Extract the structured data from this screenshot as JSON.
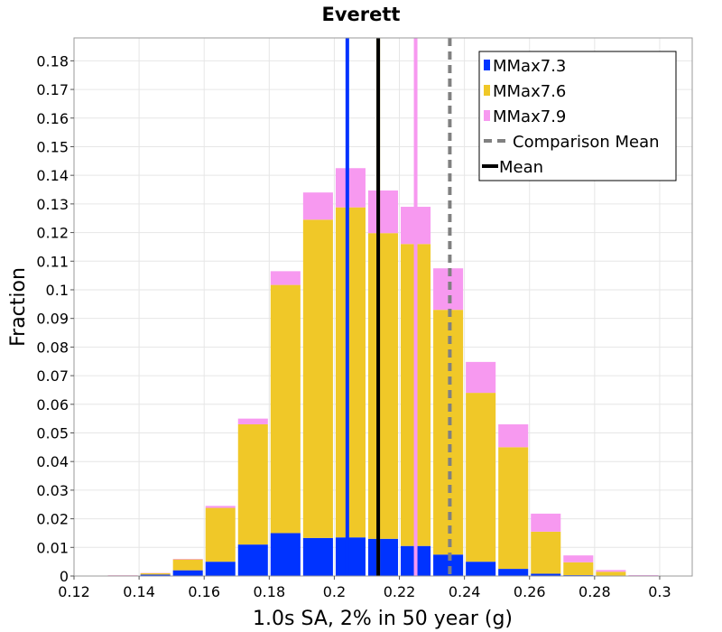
{
  "chart_data": {
    "type": "bar",
    "stacked": true,
    "title": "Everett",
    "xlabel": "1.0s SA, 2% in 50 year (g)",
    "ylabel": "Fraction",
    "xlim": [
      0.12,
      0.31
    ],
    "ylim": [
      0,
      0.188
    ],
    "bin_width": 0.01,
    "x_ticks": [
      0.12,
      0.14,
      0.16,
      0.18,
      0.2,
      0.22,
      0.24,
      0.26,
      0.28,
      0.3
    ],
    "x_tick_labels": [
      "0.12",
      "0.14",
      "0.16",
      "0.18",
      "0.2",
      "0.22",
      "0.24",
      "0.26",
      "0.28",
      "0.3"
    ],
    "y_ticks": [
      0,
      0.01,
      0.02,
      0.03,
      0.04,
      0.05,
      0.06,
      0.07,
      0.08,
      0.09,
      0.1,
      0.11,
      0.12,
      0.13,
      0.14,
      0.15,
      0.16,
      0.17,
      0.18
    ],
    "y_tick_labels": [
      "0",
      "0.01",
      "0.02",
      "0.03",
      "0.04",
      "0.05",
      "0.06",
      "0.07",
      "0.08",
      "0.09",
      "0.1",
      "0.11",
      "0.12",
      "0.13",
      "0.14",
      "0.15",
      "0.16",
      "0.17",
      "0.18"
    ],
    "grid": true,
    "legend_position": "top-right",
    "bin_centers": [
      0.135,
      0.145,
      0.155,
      0.165,
      0.175,
      0.185,
      0.195,
      0.205,
      0.215,
      0.225,
      0.235,
      0.245,
      0.255,
      0.265,
      0.275,
      0.285,
      0.295,
      0.305
    ],
    "series": [
      {
        "name": "MMax7.3",
        "color": "#0033ff",
        "values": [
          0.0,
          0.0005,
          0.002,
          0.005,
          0.011,
          0.015,
          0.0133,
          0.0135,
          0.013,
          0.0105,
          0.0075,
          0.005,
          0.0025,
          0.0008,
          0.0003,
          0.0001,
          0.0,
          0.0
        ]
      },
      {
        "name": "MMax7.6",
        "color": "#f0c828",
        "values": [
          0.0002,
          0.0005,
          0.0038,
          0.0188,
          0.042,
          0.0867,
          0.1112,
          0.1153,
          0.1068,
          0.1055,
          0.0855,
          0.059,
          0.0425,
          0.0147,
          0.0045,
          0.0014,
          0.0001,
          0.0
        ]
      },
      {
        "name": "MMax7.9",
        "color": "#f799f0",
        "values": [
          0.0001,
          0.0001,
          0.0002,
          0.0007,
          0.002,
          0.0048,
          0.0095,
          0.0137,
          0.0149,
          0.013,
          0.0145,
          0.0108,
          0.008,
          0.0063,
          0.0024,
          0.0006,
          0.0002,
          0.0001
        ]
      }
    ],
    "vertical_lines": [
      {
        "name": "MMax7.3 mean",
        "x": 0.204,
        "color": "#0033ff",
        "style": "solid"
      },
      {
        "name": "MMax7.6 mean",
        "x": 0.2135,
        "color": "#f0c828",
        "style": "solid"
      },
      {
        "name": "MMax7.9 mean",
        "x": 0.225,
        "color": "#f799f0",
        "style": "solid"
      },
      {
        "name": "Mean",
        "x": 0.2135,
        "color": "#000000",
        "style": "solid"
      },
      {
        "name": "Comparison Mean",
        "x": 0.2355,
        "color": "#808080",
        "style": "dashed"
      }
    ],
    "legend": [
      {
        "label": "MMax7.3",
        "color": "#0033ff",
        "kind": "box"
      },
      {
        "label": "MMax7.6",
        "color": "#f0c828",
        "kind": "box"
      },
      {
        "label": "MMax7.9",
        "color": "#f799f0",
        "kind": "box"
      },
      {
        "label": "Comparison Mean",
        "color": "#808080",
        "kind": "dashed"
      },
      {
        "label": "Mean",
        "color": "#000000",
        "kind": "line"
      }
    ]
  }
}
